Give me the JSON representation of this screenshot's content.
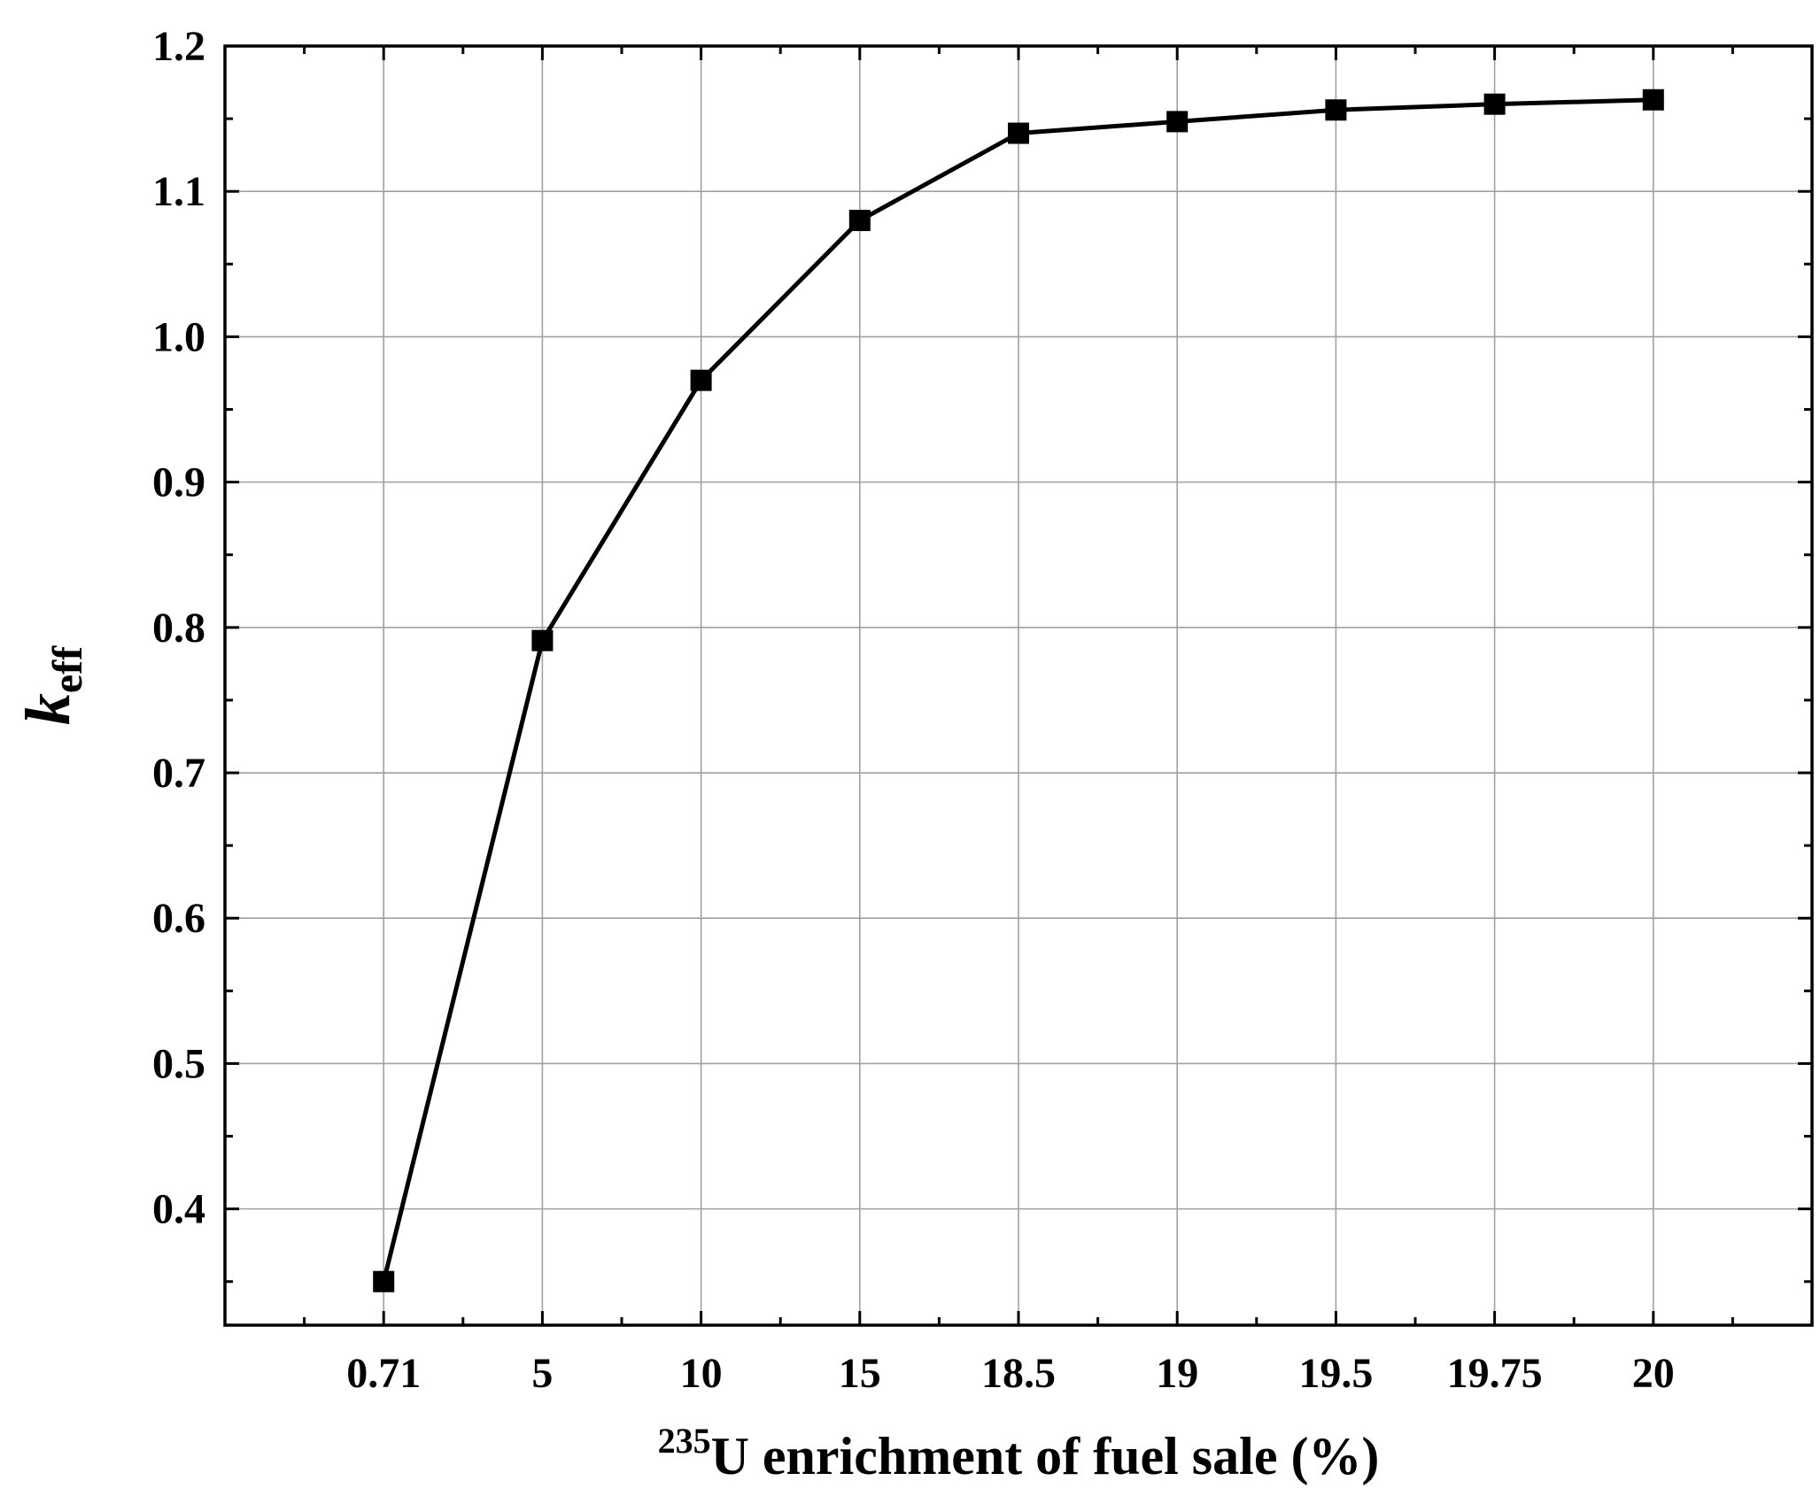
{
  "chart_data": {
    "type": "line",
    "categories": [
      "0.71",
      "5",
      "10",
      "15",
      "18.5",
      "19",
      "19.5",
      "19.75",
      "20"
    ],
    "series": [
      {
        "values": [
          0.35,
          0.791,
          0.97,
          1.08,
          1.14,
          1.148,
          1.156,
          1.16,
          1.163
        ]
      }
    ],
    "xlabel": {
      "sup": "235",
      "text": "U enrichment of fuel sale (%)"
    },
    "ylabel": {
      "main": "k",
      "sub": "eff"
    },
    "ylim": [
      0.32,
      1.2
    ],
    "yticks": [
      "0.4",
      "0.5",
      "0.6",
      "0.7",
      "0.8",
      "0.9",
      "1.0",
      "1.1",
      "1.2"
    ],
    "grid": true,
    "marker": "square",
    "colors": {
      "line": "#000000",
      "grid": "#a0a0a0",
      "marker": "#000000"
    }
  }
}
